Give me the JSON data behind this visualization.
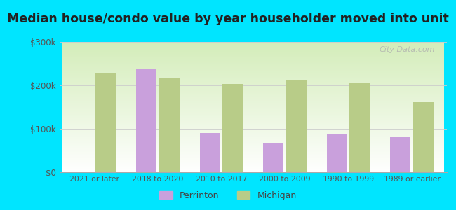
{
  "title": "Median house/condo value by year householder moved into unit",
  "categories": [
    "2021 or later",
    "2018 to 2020",
    "2010 to 2017",
    "2000 to 2009",
    "1990 to 1999",
    "1989 or earlier"
  ],
  "perrinton": [
    null,
    237000,
    90000,
    68000,
    88000,
    82000
  ],
  "michigan": [
    228000,
    218000,
    203000,
    212000,
    207000,
    163000
  ],
  "perrinton_color": "#c9a0dc",
  "michigan_color": "#b8cc88",
  "background_color": "#00e5ff",
  "plot_bg_color": "#e8f5e0",
  "ylim": [
    0,
    300000
  ],
  "yticks": [
    0,
    100000,
    200000,
    300000
  ],
  "ytick_labels": [
    "$0",
    "$100k",
    "$200k",
    "$300k"
  ],
  "legend_labels": [
    "Perrinton",
    "Michigan"
  ],
  "bar_width": 0.32,
  "title_fontsize": 12.5,
  "watermark": "City-Data.com"
}
